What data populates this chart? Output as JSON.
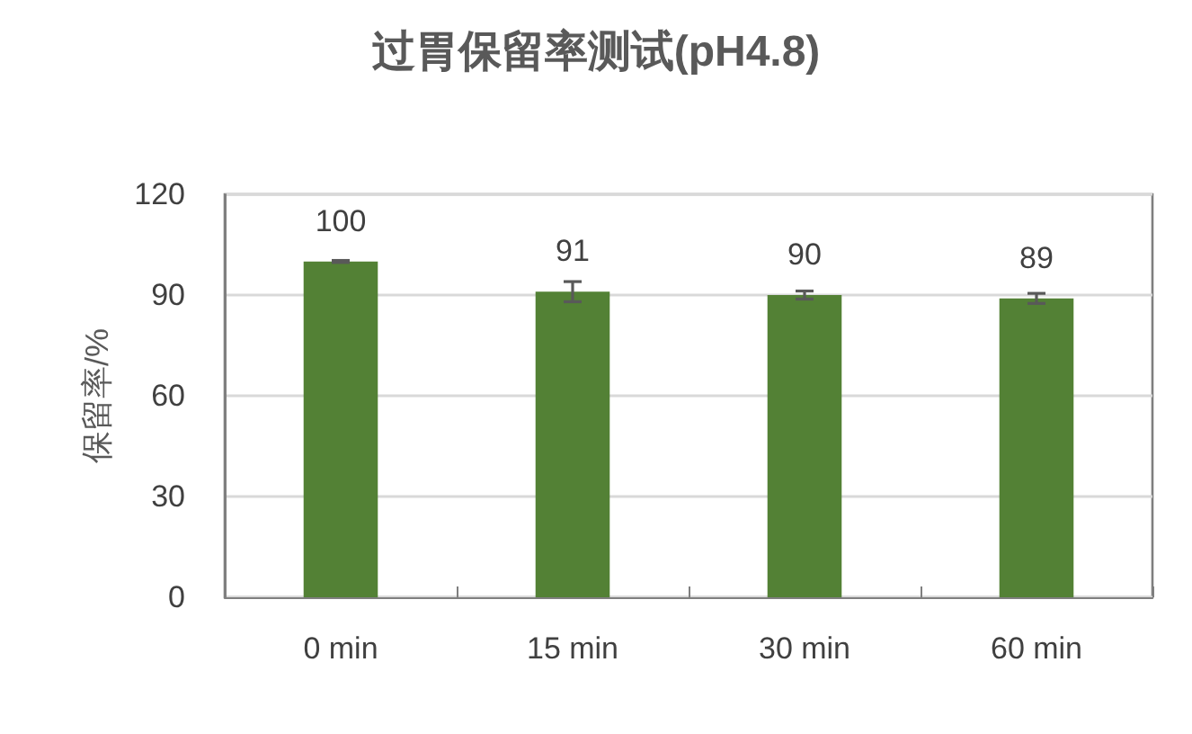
{
  "chart_data": {
    "type": "bar",
    "title": "过胃保留率测试(pH4.8)",
    "ylabel": "保留率/%",
    "categories": [
      "0 min",
      "15 min",
      "30 min",
      "60 min"
    ],
    "values": [
      100,
      91,
      90,
      89
    ],
    "color": "#538135",
    "errors": [
      0.3,
      3,
      1.2,
      1.5
    ],
    "data_labels": true,
    "ylim": [
      0,
      120
    ],
    "yticks": [
      0,
      30,
      60,
      90,
      120
    ],
    "grid": "y"
  }
}
